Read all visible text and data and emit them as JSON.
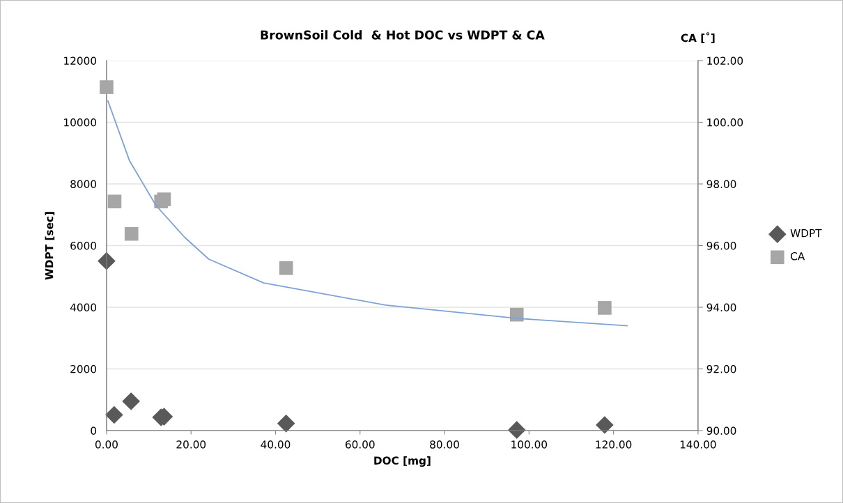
{
  "chart_data": {
    "type": "scatter",
    "title": "BrownSoil Cold  & Hot DOC vs WDPT & CA",
    "xlabel": "DOC [mg]",
    "ylabel": "WDPT [sec]",
    "y2label": "CA [˚]",
    "series": [
      {
        "name": "WDPT",
        "marker": "diamond",
        "color": "#595959",
        "x": [
          0,
          1.8,
          5.8,
          12.9,
          13.6,
          42.5,
          97.1,
          117.9
        ],
        "values": [
          5500,
          510,
          950,
          430,
          450,
          230,
          20,
          180
        ]
      },
      {
        "name": "CA",
        "marker": "square",
        "axis": "y2",
        "color": "#a6a6a6",
        "x": [
          0,
          1.9,
          5.9,
          12.9,
          13.6,
          42.5,
          97.1,
          117.9
        ],
        "values": [
          101.14,
          97.43,
          96.38,
          97.43,
          97.5,
          95.27,
          93.76,
          93.98
        ]
      },
      {
        "type": "line",
        "axis": "y2",
        "color": "#7da2d6",
        "x": [
          0.33,
          5.44,
          11.7,
          18.55,
          24.2,
          37.2,
          66,
          97,
          123.2
        ],
        "values": [
          100.69,
          98.75,
          97.3,
          96.26,
          95.56,
          94.79,
          94.07,
          93.64,
          93.4
        ]
      }
    ],
    "xlim": [
      0,
      140
    ],
    "xticks": [
      {
        "value": 0,
        "label": "0.00"
      },
      {
        "value": 20,
        "label": "20.00"
      },
      {
        "value": 40,
        "label": "40.00"
      },
      {
        "value": 60,
        "label": "60.00"
      },
      {
        "value": 80,
        "label": "80.00"
      },
      {
        "value": 100,
        "label": "100.00"
      },
      {
        "value": 120,
        "label": "120.00"
      },
      {
        "value": 140,
        "label": "140.00"
      }
    ],
    "ylim": [
      0,
      12000
    ],
    "yticks": [
      0,
      2000,
      4000,
      6000,
      8000,
      10000,
      12000
    ],
    "y2lim": [
      90,
      102
    ],
    "y2ticks": [
      {
        "value": 90,
        "label": "90.00"
      },
      {
        "value": 92,
        "label": "92.00"
      },
      {
        "value": 94,
        "label": "94.00"
      },
      {
        "value": 96,
        "label": "96.00"
      },
      {
        "value": 98,
        "label": "98.00"
      },
      {
        "value": 100,
        "label": "100.00"
      },
      {
        "value": 102,
        "label": "102.00"
      }
    ],
    "grid": "y",
    "legend": "right"
  }
}
